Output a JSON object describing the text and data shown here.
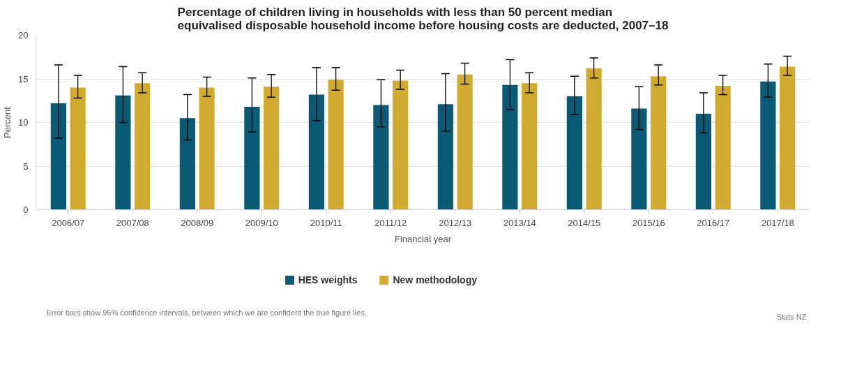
{
  "chart_data": {
    "type": "bar",
    "title": "Percentage of children living in households with less than 50 percent median equivalised disposable household income before housing costs are deducted, 2007–18",
    "xlabel": "Financial year",
    "ylabel": "Percent",
    "categories": [
      "2006/07",
      "2007/08",
      "2008/09",
      "2009/10",
      "2010/11",
      "2011/12",
      "2012/13",
      "2013/14",
      "2014/15",
      "2015/16",
      "2016/17",
      "2017/18"
    ],
    "series": [
      {
        "name": "HES weights",
        "color": "#0b5a73",
        "values": [
          12.2,
          13.1,
          10.5,
          11.8,
          13.2,
          12.0,
          12.1,
          14.3,
          13.0,
          11.6,
          11.0,
          14.7
        ],
        "errors": [
          [
            8.2,
            16.6
          ],
          [
            10.0,
            16.4
          ],
          [
            8.0,
            13.2
          ],
          [
            8.9,
            15.1
          ],
          [
            10.2,
            16.3
          ],
          [
            9.5,
            14.9
          ],
          [
            9.0,
            15.6
          ],
          [
            11.5,
            17.2
          ],
          [
            10.9,
            15.3
          ],
          [
            9.2,
            14.1
          ],
          [
            8.8,
            13.4
          ],
          [
            12.9,
            16.7
          ]
        ]
      },
      {
        "name": "New methodology",
        "color": "#d1ab2f",
        "values": [
          14.0,
          14.5,
          14.0,
          14.1,
          14.9,
          14.8,
          15.5,
          14.5,
          16.2,
          15.3,
          14.2,
          16.4
        ],
        "errors": [
          [
            12.8,
            15.4
          ],
          [
            13.4,
            15.7
          ],
          [
            13.0,
            15.2
          ],
          [
            12.9,
            15.5
          ],
          [
            13.7,
            16.3
          ],
          [
            13.8,
            16.0
          ],
          [
            14.4,
            16.8
          ],
          [
            13.4,
            15.7
          ],
          [
            15.1,
            17.4
          ],
          [
            14.3,
            16.6
          ],
          [
            13.2,
            15.4
          ],
          [
            15.4,
            17.6
          ]
        ]
      }
    ],
    "ylim": [
      0,
      20
    ],
    "yticks": [
      0,
      5,
      10,
      15,
      20
    ],
    "grid": "y",
    "legend": "bottom",
    "annotations": [
      "Error bars show 95% confidence intervals, between which we are confident the true figure lies.",
      "Stats NZ"
    ]
  }
}
